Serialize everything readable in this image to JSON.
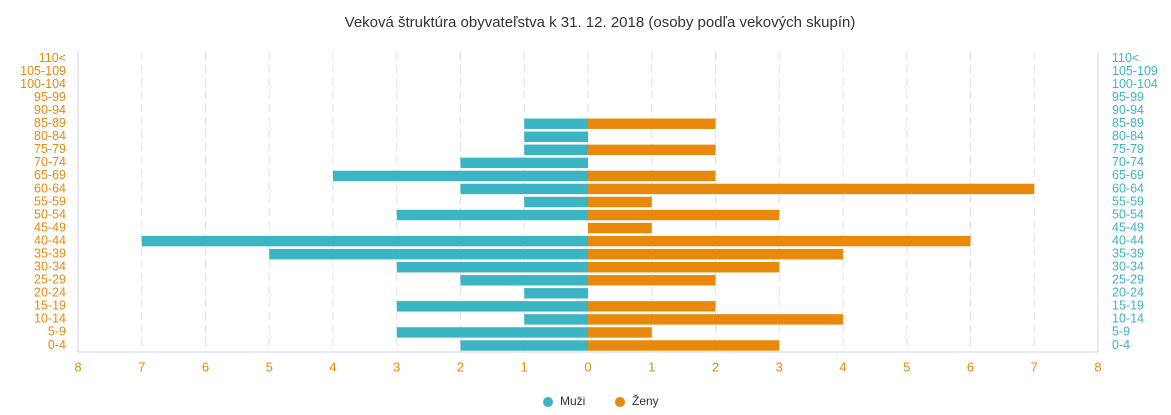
{
  "chart_data": {
    "type": "pyramid",
    "title": "Veková štruktúra obyvateľstva k 31. 12. 2018 (osoby podľa vekových skupín)",
    "categories": [
      "0-4",
      "5-9",
      "10-14",
      "15-19",
      "20-24",
      "25-29",
      "30-34",
      "35-39",
      "40-44",
      "45-49",
      "50-54",
      "55-59",
      "60-64",
      "65-69",
      "70-74",
      "75-79",
      "80-84",
      "85-89",
      "90-94",
      "95-99",
      "100-104",
      "105-109",
      "110<"
    ],
    "series": [
      {
        "name": "Muži",
        "color": "#3bb5c3",
        "side": "left",
        "values": [
          2,
          3,
          1,
          3,
          1,
          2,
          3,
          5,
          7,
          0,
          3,
          1,
          2,
          4,
          2,
          1,
          1,
          1,
          0,
          0,
          0,
          0,
          0
        ]
      },
      {
        "name": "Ženy",
        "color": "#e8890c",
        "side": "right",
        "values": [
          3,
          1,
          4,
          2,
          0,
          2,
          3,
          4,
          6,
          1,
          3,
          1,
          7,
          2,
          0,
          2,
          0,
          2,
          0,
          0,
          0,
          0,
          0
        ]
      }
    ],
    "xlim": [
      0,
      8
    ],
    "xticks": [
      0,
      1,
      2,
      3,
      4,
      5,
      6,
      7,
      8
    ],
    "grid": true,
    "legend": "bottom"
  }
}
